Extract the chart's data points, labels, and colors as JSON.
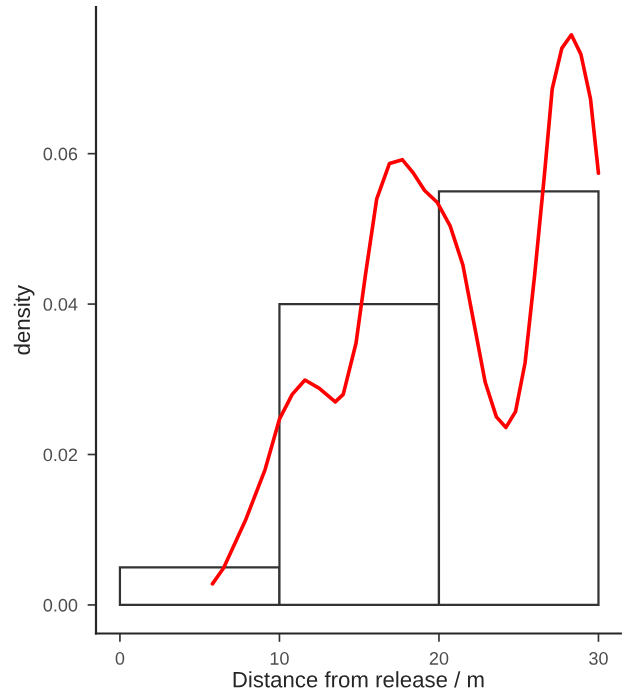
{
  "chart_data": {
    "type": "histogram",
    "xlabel": "Distance from release / m",
    "ylabel": "density",
    "bins": [
      0,
      10,
      20,
      30
    ],
    "values": [
      0.005,
      0.04,
      0.055
    ],
    "color": "#ffffff",
    "series": [
      {
        "type": "line",
        "color": "#ff0000",
        "x": [
          5.8,
          6.5,
          7.9,
          9.1,
          10,
          10.8,
          11.6,
          12.5,
          13.5,
          14,
          14.8,
          15.4,
          16.1,
          16.9,
          17.7,
          18.4,
          19.1,
          19.9,
          20.7,
          21.5,
          22.2,
          22.9,
          23.6,
          24.2,
          24.8,
          25.4,
          26,
          26.6,
          27.1,
          27.7,
          28.3,
          28.9,
          29.5,
          30
        ],
        "values": [
          0.0028,
          0.0049,
          0.0114,
          0.018,
          0.0247,
          0.028,
          0.0299,
          0.0288,
          0.027,
          0.028,
          0.0348,
          0.044,
          0.054,
          0.0587,
          0.0592,
          0.0574,
          0.0551,
          0.0535,
          0.0504,
          0.0452,
          0.0374,
          0.0296,
          0.025,
          0.0236,
          0.0257,
          0.0322,
          0.0439,
          0.0569,
          0.0686,
          0.074,
          0.0758,
          0.0732,
          0.0673,
          0.0574
        ]
      }
    ],
    "xlim": [
      -1.5,
      31.4
    ],
    "ylim": [
      -0.0038,
      0.0795
    ],
    "xticks": [
      0,
      10,
      20,
      30
    ],
    "yticks": [
      {
        "value": 0,
        "label": "0.00"
      },
      {
        "value": 0.02,
        "label": "0.02"
      },
      {
        "value": 0.04,
        "label": "0.04"
      },
      {
        "value": 0.06,
        "label": "0.06"
      }
    ],
    "grid": false
  }
}
